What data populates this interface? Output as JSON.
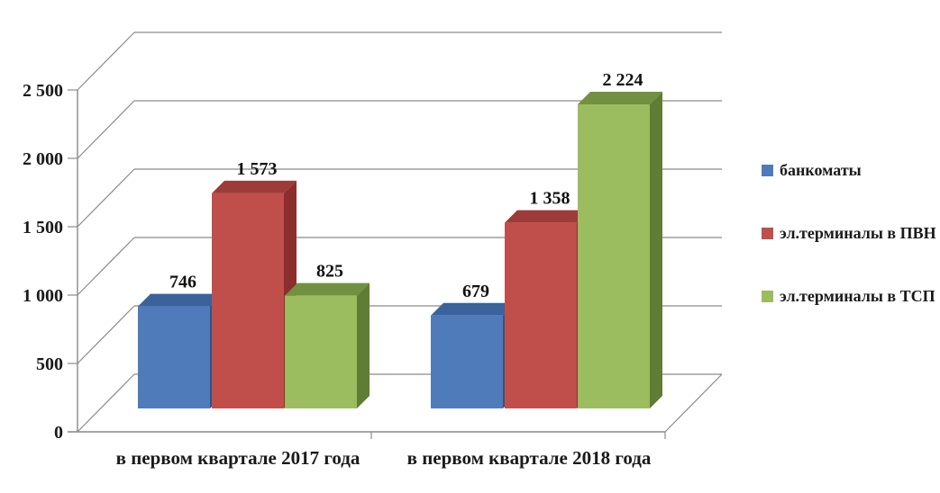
{
  "chart_data": {
    "type": "bar",
    "variant": "3d-clustered-column",
    "title": "",
    "xlabel": "",
    "ylabel": "",
    "grid": true,
    "legend_position": "right",
    "axis_color": "#8a8a8a",
    "text_color": "#1a1a1a",
    "background_color": "#ffffff",
    "categories": [
      "в первом квартале 2017 года",
      "в первом квартале 2018 года"
    ],
    "series": [
      {
        "name": "банкоматы",
        "values": [
          746,
          679
        ],
        "labels": [
          "746",
          "679"
        ],
        "color": "#4f7bbb",
        "color_top": "#3a629b",
        "color_side": "#32537e"
      },
      {
        "name": "эл.терминалы в ПВН",
        "values": [
          1573,
          1358
        ],
        "labels": [
          "1 573",
          "1 358"
        ],
        "color": "#c04f4c",
        "color_top": "#9c3b38",
        "color_side": "#8a2f2d"
      },
      {
        "name": "эл.терминалы в ТСП",
        "values": [
          825,
          2224
        ],
        "labels": [
          "825",
          "2 224"
        ],
        "color": "#9cbc60",
        "color_top": "#719140",
        "color_side": "#5f7d35"
      }
    ],
    "y_axis": {
      "min": 0,
      "max": 2500,
      "step": 500,
      "ticks": [
        0,
        500,
        1000,
        1500,
        2000,
        2500
      ],
      "tick_labels": [
        "0",
        "500",
        "1 000",
        "1 500",
        "2 000",
        "2 500"
      ]
    }
  }
}
